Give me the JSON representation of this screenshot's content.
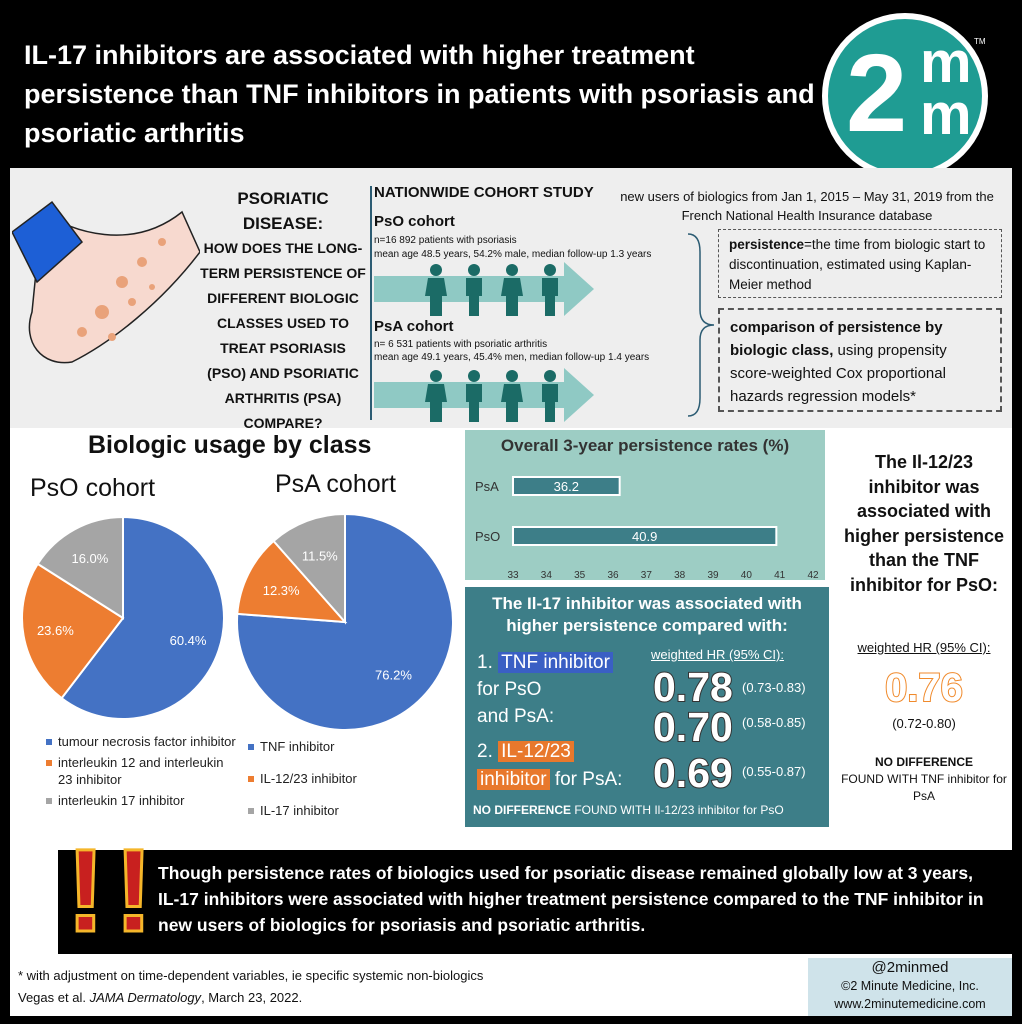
{
  "title": "IL-17 inhibitors are associated with higher treatment persistence than TNF inhibitors in patients with psoriasis and psoriatic arthritis",
  "logo": {
    "main": "2",
    "m": "m",
    "tm": "TM"
  },
  "question": {
    "line1": "PSORIATIC",
    "line2": "DISEASE:",
    "body": "How does the long-term persistence of different biologic classes used to treat psoriasis (PsO) and psoriatic arthritis (PsA) compare?"
  },
  "study": {
    "heading": "NATIONWIDE COHORT STUDY",
    "description": "new users of biologics from Jan 1, 2015 – May 31, 2019 from the French National Health Insurance database",
    "pso": {
      "title": "PsO cohort",
      "line1": "n=16 892 patients with psoriasis",
      "line2": "mean age 48.5 years, 54.2% male, median follow-up 1.3 years"
    },
    "psa": {
      "title": "PsA cohort",
      "line1": "n= 6 531 patients with psoriatic arthritis",
      "line2": "mean age 49.1 years, 45.4% men, median follow-up 1.4 years"
    },
    "definition_term": "persistence",
    "definition_text": "=the time from biologic start to discontinuation, estimated using Kaplan-Meier method",
    "comparison_bold": "comparison of persistence by biologic class,",
    "comparison_text": " using propensity score-weighted Cox proportional hazards regression models*"
  },
  "usage": {
    "title": "Biologic usage by class",
    "pso_title": "PsO cohort",
    "psa_title": "PsA cohort",
    "pso_legend": [
      "tumour necrosis factor inhibitor",
      "interleukin 12 and interleukin 23 inhibitor",
      "interleukin 17 inhibitor"
    ],
    "psa_legend": [
      "TNF inhibitor",
      "IL-12/23 inhibitor",
      "IL-17 inhibitor"
    ]
  },
  "colors": {
    "tnf": "#4472c4",
    "il1223": "#ed7d31",
    "il17": "#a5a5a5",
    "teal": "#3d7e88",
    "bar": "#3d7e88"
  },
  "chart_data": [
    {
      "type": "pie",
      "title": "PsO cohort",
      "categories": [
        "tumour necrosis factor inhibitor",
        "interleukin 12 and interleukin 23 inhibitor",
        "interleukin 17 inhibitor"
      ],
      "values": [
        60.4,
        23.6,
        16.0
      ],
      "labels": [
        "60.4%",
        "23.6%",
        "16.0%"
      ]
    },
    {
      "type": "pie",
      "title": "PsA cohort",
      "categories": [
        "TNF inhibitor",
        "IL-12/23 inhibitor",
        "IL-17 inhibitor"
      ],
      "values": [
        76.2,
        12.3,
        11.5
      ],
      "labels": [
        "76.2%",
        "12.3%",
        "11.5%"
      ]
    },
    {
      "type": "bar",
      "title": "Overall 3-year persistence rates (%)",
      "categories": [
        "PsA",
        "PsO"
      ],
      "values": [
        36.2,
        40.9
      ],
      "labels": [
        "36.2",
        "40.9"
      ],
      "xlim": [
        33,
        42
      ],
      "ticks": [
        "33",
        "34",
        "35",
        "36",
        "37",
        "38",
        "39",
        "40",
        "41",
        "42"
      ]
    }
  ],
  "il17": {
    "heading": "The Il-17 inhibitor was associated with higher persistence compared with:",
    "wt_label": "weighted HR (95% CI):",
    "item1_num": "1.",
    "item1_hl": "TNF inhibitor",
    "item1_rest1": "for PsO",
    "item1_rest2": "and PsA:",
    "item2_num": "2.",
    "item2_hl1": "IL-12/23",
    "item2_hl2": "inhibitor",
    "item2_rest": "for PsA:",
    "hr1": "0.78",
    "ci1": "(0.73-0.83)",
    "hr2": "0.70",
    "ci2": "(0.58-0.85)",
    "hr3": "0.69",
    "ci3": "(0.55-0.87)",
    "nodiff_bold": "NO DIFFERENCE",
    "nodiff_rest": " FOUND WITH Il-12/23 inhibitor for PsO"
  },
  "right": {
    "heading": "The Il-12/23 inhibitor was associated with higher persistence than the TNF inhibitor for PsO:",
    "wt_label": "weighted HR (95% CI):",
    "hr": "0.76",
    "ci": "(0.72-0.80)",
    "nd_bold": "NO DIFFERENCE",
    "nd_rest": "FOUND WITH TNF inhibitor for PsA"
  },
  "conclusion": {
    "text": "Though persistence rates of biologics used for psoriatic disease remained globally low at 3 years, IL-17 inhibitors were associated with higher treatment persistence compared to the TNF inhibitor in new users of biologics for psoriasis and psoriatic arthritis.",
    "mark": "!"
  },
  "footer": {
    "note": "* with adjustment on time-dependent variables, ie specific systemic non-biologics",
    "cite_authors": "Vegas et al. ",
    "cite_journal": "JAMA Dermatology",
    "cite_date": ", March 23, 2022.",
    "handle": "@2minmed",
    "copyright": "©2 Minute Medicine, Inc.",
    "website": "www.2minutemedicine.com"
  }
}
